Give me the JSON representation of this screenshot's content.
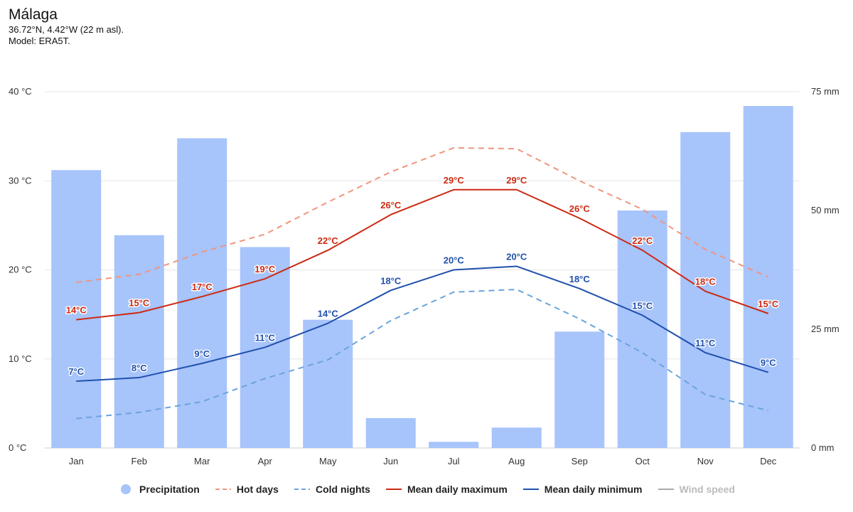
{
  "header": {
    "title": "Málaga",
    "coords": "36.72°N, 4.42°W (22 m asl).",
    "model": "Model: ERA5T."
  },
  "colors": {
    "precipitation": "#a7c4fb",
    "hot_days": "#f0957f",
    "cold_nights": "#6aa4dc",
    "mean_max": "#cc2a12",
    "mean_min": "#2050ad",
    "wind": "#aaaaaa",
    "grid": "#e6e6e6"
  },
  "chart_data": {
    "type": "bar+line",
    "categories": [
      "Jan",
      "Feb",
      "Mar",
      "Apr",
      "May",
      "Jun",
      "Jul",
      "Aug",
      "Sep",
      "Oct",
      "Nov",
      "Dec"
    ],
    "left_axis": {
      "ticks": [
        "0 °C",
        "10 °C",
        "20 °C",
        "30 °C",
        "40 °C"
      ],
      "min": 0,
      "max": 40
    },
    "right_axis": {
      "ticks": [
        "0 mm",
        "25 mm",
        "50 mm",
        "75 mm"
      ],
      "min": 0,
      "max": 75
    },
    "series": [
      {
        "name": "Precipitation",
        "type": "bar",
        "axis": "right",
        "values": [
          58.5,
          44.8,
          65.2,
          42.3,
          27,
          6.3,
          1.3,
          4.3,
          24.5,
          50,
          66.5,
          72
        ]
      },
      {
        "name": "Hot days",
        "type": "line-dashed",
        "axis": "left",
        "values": [
          18.6,
          19.5,
          22,
          24,
          27.6,
          31,
          33.7,
          33.6,
          30,
          26.8,
          22.3,
          19.2
        ]
      },
      {
        "name": "Cold nights",
        "type": "line-dashed",
        "axis": "left",
        "values": [
          3.3,
          4,
          5.2,
          7.8,
          9.9,
          14.3,
          17.5,
          17.8,
          14.5,
          10.7,
          6,
          4.2
        ]
      },
      {
        "name": "Mean daily maximum",
        "type": "line",
        "axis": "left",
        "values": [
          14.4,
          15.2,
          17,
          19,
          22.2,
          26.2,
          29,
          29,
          25.8,
          22.2,
          17.6,
          15.1
        ],
        "labels": [
          "14°C",
          "15°C",
          "17°C",
          "19°C",
          "22°C",
          "26°C",
          "29°C",
          "29°C",
          "26°C",
          "22°C",
          "18°C",
          "15°C"
        ]
      },
      {
        "name": "Mean daily minimum",
        "type": "line",
        "axis": "left",
        "values": [
          7.5,
          7.9,
          9.5,
          11.3,
          14,
          17.7,
          20,
          20.4,
          17.9,
          14.9,
          10.7,
          8.5
        ],
        "labels": [
          "7°C",
          "8°C",
          "9°C",
          "11°C",
          "14°C",
          "18°C",
          "20°C",
          "20°C",
          "18°C",
          "15°C",
          "11°C",
          "9°C"
        ]
      }
    ],
    "legend": [
      "Precipitation",
      "Hot days",
      "Cold nights",
      "Mean daily maximum",
      "Mean daily minimum",
      "Wind speed"
    ],
    "legend_disabled": [
      "Wind speed"
    ]
  }
}
